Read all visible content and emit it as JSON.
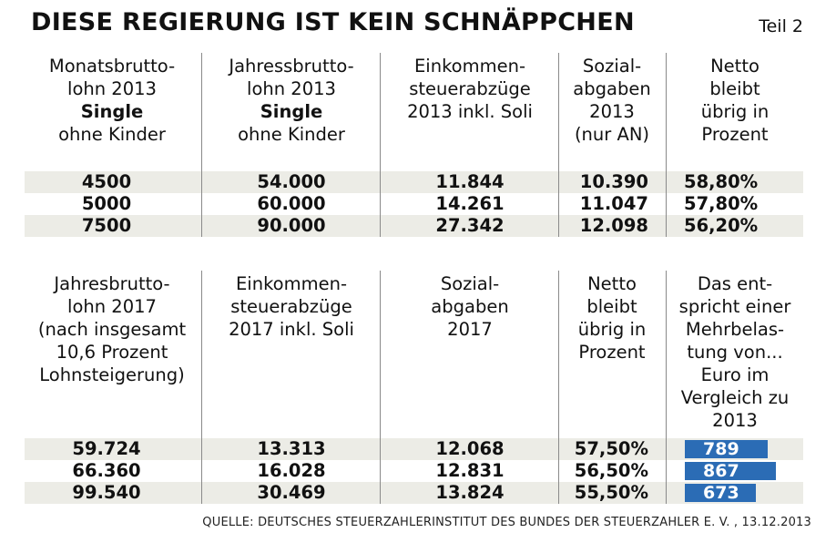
{
  "header": {
    "title": "DIESE REGIERUNG IST KEIN SCHNÄPPCHEN",
    "part": "Teil 2"
  },
  "table1": {
    "columns": [
      {
        "lines": [
          "Monatsbrutto-",
          "lohn 2013"
        ],
        "bold": "Single",
        "after": [
          "ohne Kinder"
        ]
      },
      {
        "lines": [
          "Jahressbrutto-",
          "lohn 2013"
        ],
        "bold": "Single",
        "after": [
          "ohne Kinder"
        ]
      },
      {
        "lines": [
          "Einkommen-",
          "steuerabzüge",
          "2013 inkl. Soli"
        ],
        "bold": "",
        "after": []
      },
      {
        "lines": [
          "Sozial-",
          "abgaben",
          "2013",
          "(nur AN)"
        ],
        "bold": "",
        "after": []
      },
      {
        "lines": [
          "Netto",
          "bleibt",
          "übrig in",
          "Prozent"
        ],
        "bold": "",
        "after": []
      }
    ],
    "rows": [
      [
        "4500",
        "54.000",
        "11.844",
        "10.390",
        "58,80%"
      ],
      [
        "5000",
        "60.000",
        "14.261",
        "11.047",
        "57,80%"
      ],
      [
        "7500",
        "90.000",
        "27.342",
        "12.098",
        "56,20%"
      ]
    ]
  },
  "table2": {
    "columns": [
      {
        "lines": [
          "Jahresbrutto-",
          "lohn 2017",
          "(nach insgesamt",
          "10,6 Prozent",
          "Lohnsteigerung)"
        ]
      },
      {
        "lines": [
          "Einkommen-",
          "steuerabzüge",
          "2017 inkl. Soli"
        ]
      },
      {
        "lines": [
          "Sozial-",
          "abgaben",
          "2017"
        ]
      },
      {
        "lines": [
          "Netto",
          "bleibt",
          "übrig in",
          "Prozent"
        ]
      },
      {
        "lines": [
          "Das ent-",
          "spricht einer",
          "Mehrbelas-",
          "tung von...",
          "Euro im",
          "Vergleich zu",
          "2013"
        ]
      }
    ],
    "rows": [
      [
        "59.724",
        "13.313",
        "12.068",
        "57,50%"
      ],
      [
        "66.360",
        "16.028",
        "12.831",
        "56,50%"
      ],
      [
        "99.540",
        "30.469",
        "13.824",
        "55,50%"
      ]
    ]
  },
  "chart_data": {
    "type": "bar",
    "categories": [
      "59.724",
      "66.360",
      "99.540"
    ],
    "values": [
      789,
      867,
      673
    ],
    "title": "",
    "xlabel": "",
    "ylabel": "",
    "bar_color": "#2b6cb5",
    "orientation": "horizontal"
  },
  "colors": {
    "stripe": "#ecece6",
    "accent": "#2b6cb5"
  },
  "footer": {
    "source": "QUELLE: DEUTSCHES STEUERZAHLERINSTITUT DES BUNDES DER STEUERZAHLER E. V. , 13.12.2013"
  }
}
